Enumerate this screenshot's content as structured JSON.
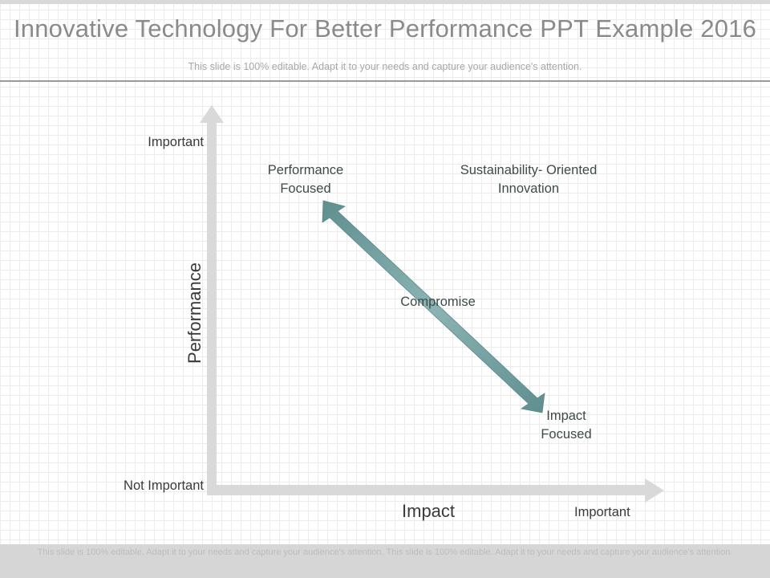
{
  "slide": {
    "title": "Innovative Technology For Better Performance PPT Example 2016",
    "subtitle": "This slide is 100% editable. Adapt it to your needs and capture your audience's attention.",
    "footer": "This slide is 100% editable. Adapt it to your needs and capture your audience's attention. This slide is 100% editable. Adapt it to your needs and capture your audience's attention."
  },
  "diagram": {
    "y_axis": {
      "title": "Performance",
      "high": "Important",
      "low": "Not Important"
    },
    "x_axis": {
      "title": "Impact",
      "high": "Important"
    },
    "labels": {
      "performance_focused": "Performance Focused",
      "sustainability": "Sustainability- Oriented Innovation",
      "compromise": "Compromise",
      "impact_focused": "Impact Focused"
    }
  },
  "colors": {
    "axis": "#d9d9d9",
    "arrow": "#6f9c9c",
    "arrow_dark": "#5d8a8a"
  }
}
